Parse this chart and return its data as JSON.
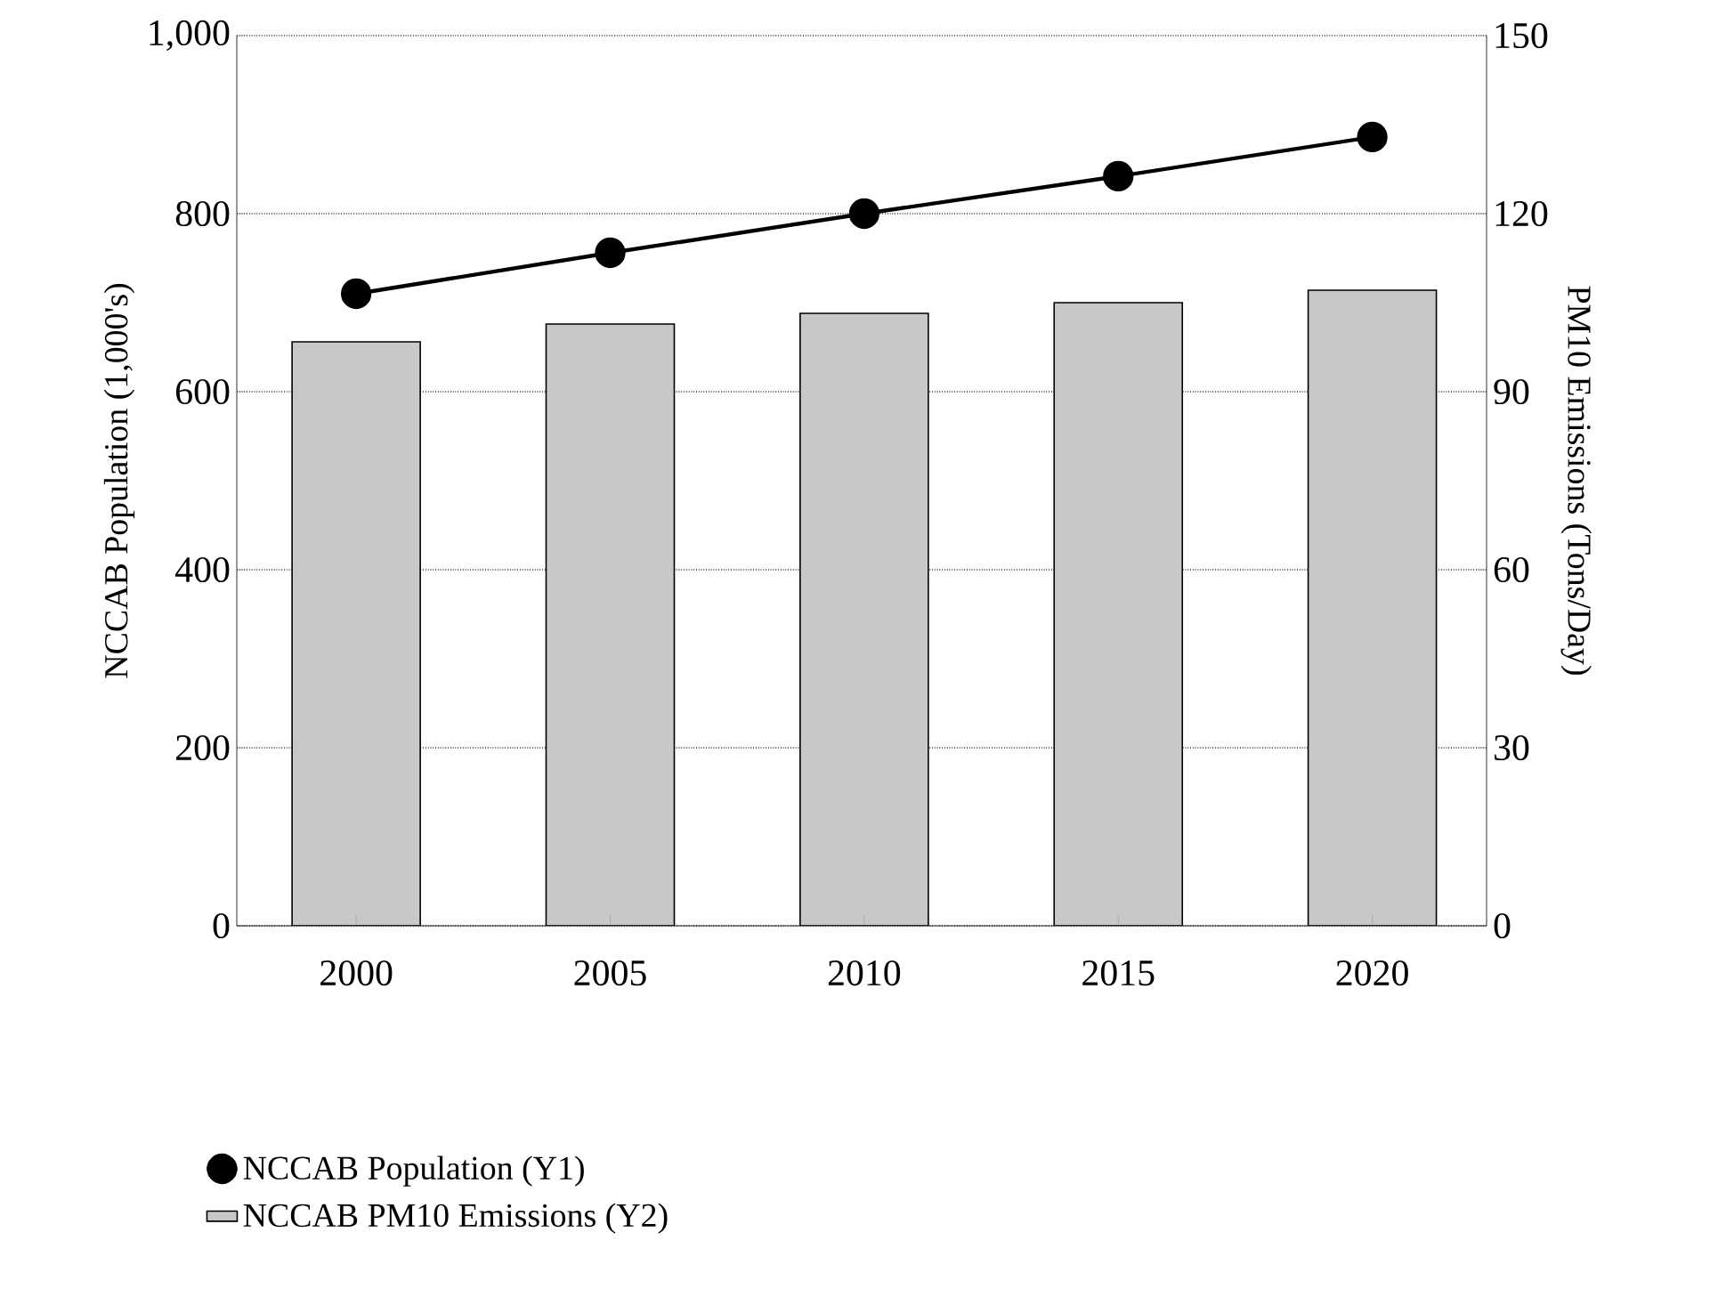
{
  "chart_data": {
    "type": "bar",
    "categories": [
      "2000",
      "2005",
      "2010",
      "2015",
      "2020"
    ],
    "series": [
      {
        "name": "NCCAB Population (Y1)",
        "type": "line",
        "color": "#000000",
        "marker": "circle",
        "line_style": "solid",
        "values": [
          710,
          756,
          800,
          842,
          886
        ]
      },
      {
        "name": "NCCAB PM10 Emissions (Y2)",
        "axis": "y2",
        "color": "#c8c8c8",
        "values": [
          98.4,
          101.4,
          103.2,
          105,
          107.1
        ]
      }
    ],
    "ylabel": "NCCAB Population (1,000's)",
    "y2label": "PM10 Emissions (Tons/Day)",
    "ylim": [
      0,
      1000
    ],
    "yticks": [
      0,
      200,
      400,
      600,
      800,
      {
        "value": 1000,
        "label": "1,000"
      }
    ],
    "y2lim": [
      0,
      150
    ],
    "y2ticks": [
      0,
      30,
      60,
      90,
      120,
      150
    ],
    "grid": "y",
    "legend": "bottom"
  }
}
